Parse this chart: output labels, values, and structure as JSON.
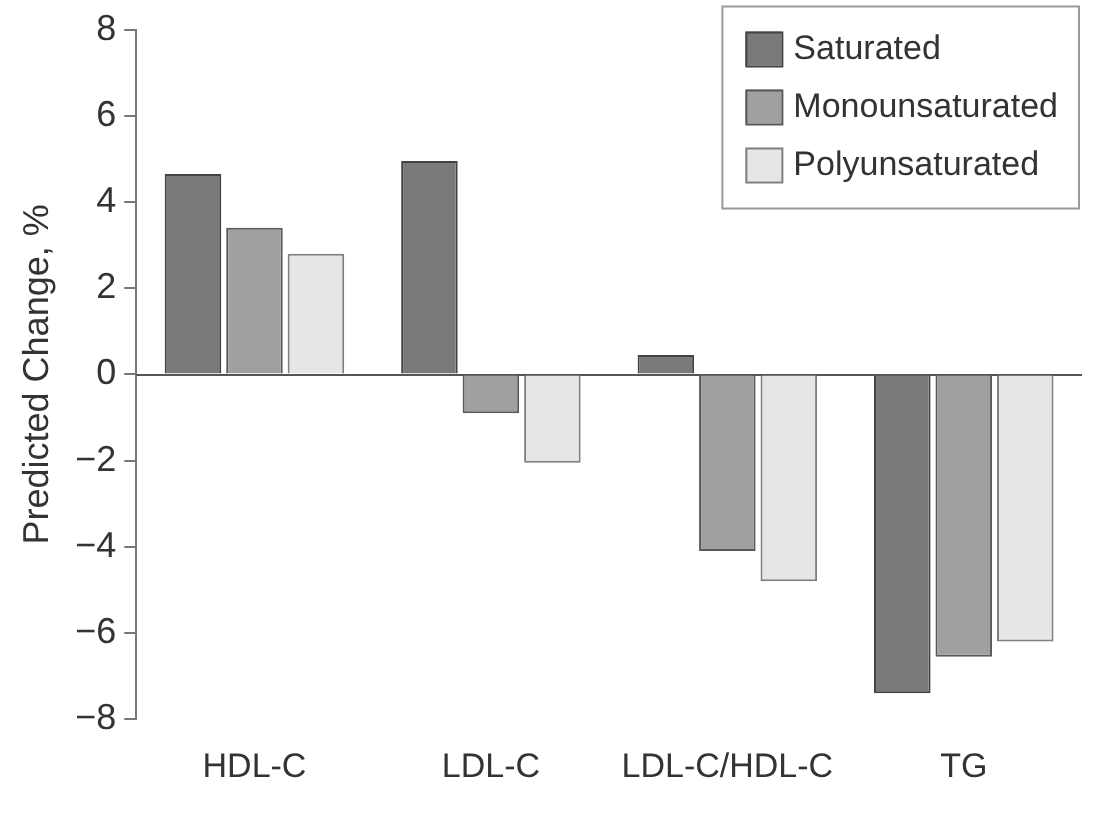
{
  "chart_data": {
    "type": "bar",
    "ylabel": "Predicted Change, %",
    "categories": [
      "HDL-C",
      "LDL-C",
      "LDL-C/HDL-C",
      "TG"
    ],
    "series": [
      {
        "name": "Saturated",
        "color": "#7a7a7a",
        "values": [
          4.65,
          4.95,
          0.45,
          -7.4
        ]
      },
      {
        "name": "Monounsaturated",
        "color": "#a0a0a0",
        "values": [
          3.4,
          -0.9,
          -4.1,
          -6.55
        ]
      },
      {
        "name": "Polyunsaturated",
        "color": "#e6e6e6",
        "values": [
          2.8,
          -2.05,
          -4.8,
          -6.2
        ]
      }
    ],
    "ylim": [
      -8,
      8
    ],
    "yticks": [
      -8,
      -6,
      -4,
      -2,
      0,
      2,
      4,
      6,
      8
    ],
    "grid": false,
    "legend": "top right",
    "ref_lines": [
      {
        "axis": "y",
        "value": 0,
        "color": "#555555"
      }
    ]
  }
}
